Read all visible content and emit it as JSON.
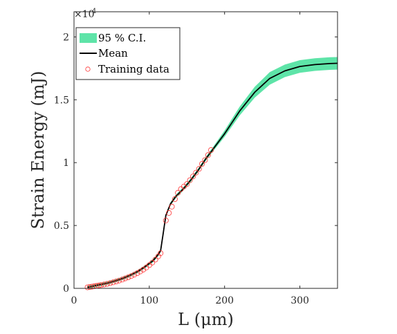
{
  "chart_data": {
    "type": "line",
    "xlabel": "L (μm)",
    "ylabel": "Strain Energy (mJ)",
    "y_multiplier_label": "×10",
    "y_multiplier_exp": "4",
    "xlim": [
      0,
      350
    ],
    "ylim": [
      0,
      22000
    ],
    "x_ticks": [
      0,
      100,
      200,
      300
    ],
    "x_tick_labels": [
      "0",
      "100",
      "200",
      "300"
    ],
    "y_ticks": [
      0,
      5000,
      10000,
      15000,
      20000
    ],
    "y_tick_labels": [
      "0",
      "0.5",
      "1",
      "1.5",
      "2"
    ],
    "grid": false,
    "legend_position": "top-left",
    "legend": {
      "ci_label": "95 % C.I.",
      "mean_label": "Mean",
      "training_label": "Training data"
    },
    "colors": {
      "ci_fill": "#5ee4a8",
      "mean_line": "#000000",
      "training_marker": "#ff3333"
    },
    "mean": {
      "x": [
        18,
        25,
        35,
        45,
        55,
        65,
        75,
        85,
        95,
        105,
        112,
        115,
        118,
        122,
        128,
        135,
        145,
        155,
        165,
        175,
        185,
        200,
        220,
        240,
        260,
        280,
        300,
        320,
        340,
        350
      ],
      "y": [
        80,
        170,
        300,
        430,
        600,
        800,
        1050,
        1350,
        1750,
        2200,
        2700,
        3000,
        4200,
        5800,
        6700,
        7300,
        7900,
        8600,
        9400,
        10300,
        11100,
        12300,
        14100,
        15600,
        16700,
        17300,
        17650,
        17800,
        17880,
        17900
      ]
    },
    "ci_halfwidth": {
      "x": [
        18,
        100,
        180,
        200,
        230,
        260,
        290,
        320,
        350
      ],
      "y": [
        120,
        120,
        150,
        250,
        400,
        500,
        500,
        500,
        500
      ]
    },
    "training_data": {
      "x": [
        18,
        21,
        24,
        27,
        30,
        33,
        36,
        40,
        44,
        48,
        52,
        56,
        60,
        64,
        68,
        72,
        76,
        80,
        84,
        88,
        92,
        96,
        100,
        104,
        108,
        112,
        115,
        122,
        126,
        130,
        134,
        138,
        142,
        146,
        150,
        154,
        158,
        162,
        166,
        170,
        174,
        178,
        182
      ],
      "y": [
        80,
        110,
        140,
        170,
        200,
        230,
        260,
        310,
        360,
        420,
        480,
        550,
        620,
        700,
        790,
        880,
        980,
        1090,
        1210,
        1340,
        1490,
        1660,
        1850,
        2050,
        2290,
        2550,
        2800,
        5400,
        6000,
        6500,
        7100,
        7600,
        7900,
        8100,
        8300,
        8600,
        8900,
        9200,
        9500,
        9900,
        10200,
        10600,
        11000
      ]
    }
  }
}
